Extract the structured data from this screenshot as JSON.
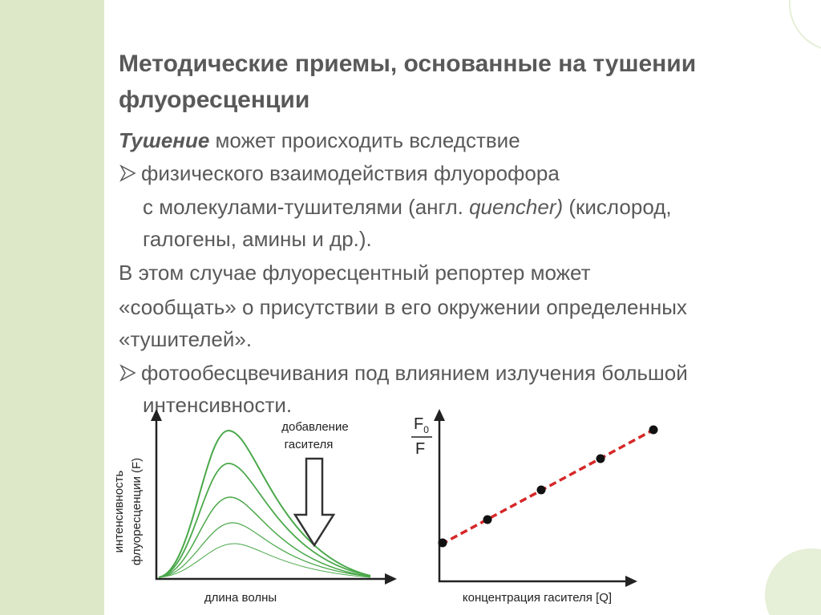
{
  "title": [
    "Методические приемы, основанные на тушении",
    "флуоресценции"
  ],
  "body": {
    "intro": {
      "term": "Тушение",
      "rest": " может происходить вследствие"
    },
    "bullet1": {
      "line1": "физического взаимодействия флуорофора",
      "line2a": "с молекулами-тушителями (англ. ",
      "line2b": "quencher)",
      "line2c": " (кислород,",
      "line3": "галогены, амины и др.)."
    },
    "note": [
      "В этом случае флуоресцентный репортер может",
      "«сообщать» о присутствии в его окружении определенных",
      "«тушителей»."
    ],
    "bullet2": [
      "фотообесцвечивания под влиянием излучения большой",
      "интенсивности."
    ]
  },
  "figure_left": {
    "y_label": [
      "интенсивность",
      "флуоресценции (F)"
    ],
    "x_label": "длина волны",
    "annotation": [
      "добавление",
      "гасителя"
    ]
  },
  "figure_right": {
    "y_label_num": "F",
    "y_label_sub": "0",
    "y_label_den": "F",
    "x_label": "концентрация гасителя [Q]"
  }
}
